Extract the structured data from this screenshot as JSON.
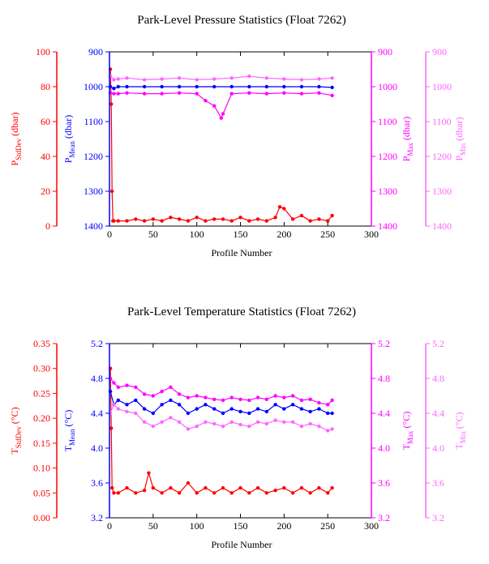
{
  "colors": {
    "red": "#ff0000",
    "blue": "#0000ff",
    "magenta": "#ff00ff",
    "pink": "#ff66ff",
    "axis": "#000000"
  },
  "chart_data": [
    {
      "type": "scatter",
      "title": "Park-Level Pressure Statistics (Float 7262)",
      "xlabel": "Profile Number",
      "xlim": [
        0,
        300
      ],
      "x_ticks": [
        "0",
        "50",
        "100",
        "150",
        "200",
        "250",
        "300"
      ],
      "axes": [
        {
          "id": "stddev",
          "label_main": "P",
          "label_sub": "StdDev",
          "label_unit": " (dbar)",
          "ylim": [
            0,
            100
          ],
          "reversed": false,
          "ticks": [
            "0",
            "20",
            "40",
            "60",
            "80",
            "100"
          ],
          "color": "#ff0000"
        },
        {
          "id": "mean",
          "label_main": "P",
          "label_sub": "Mean",
          "label_unit": " (dbar)",
          "ylim": [
            900,
            1400
          ],
          "reversed": true,
          "ticks": [
            "900",
            "1000",
            "1100",
            "1200",
            "1300",
            "1400"
          ],
          "color": "#0000ff"
        },
        {
          "id": "max",
          "label_main": "P",
          "label_sub": "Max",
          "label_unit": " (dbar)",
          "ylim": [
            900,
            1400
          ],
          "reversed": true,
          "ticks": [
            "900",
            "1000",
            "1100",
            "1200",
            "1300",
            "1400"
          ],
          "color": "#ff00ff"
        },
        {
          "id": "min",
          "label_main": "P",
          "label_sub": "Min",
          "label_unit": " (dbar)",
          "ylim": [
            900,
            1400
          ],
          "reversed": true,
          "ticks": [
            "900",
            "1000",
            "1100",
            "1200",
            "1300",
            "1400"
          ],
          "color": "#ff66ff"
        }
      ],
      "series": [
        {
          "axis": "stddev",
          "x": [
            1,
            2,
            3,
            4,
            5,
            10,
            20,
            30,
            40,
            50,
            60,
            70,
            80,
            90,
            100,
            110,
            120,
            130,
            140,
            150,
            160,
            170,
            180,
            190,
            195,
            200,
            210,
            220,
            230,
            240,
            250,
            255
          ],
          "y": [
            90,
            70,
            20,
            3,
            3,
            3,
            3,
            4,
            3,
            4,
            3,
            5,
            4,
            3,
            5,
            3,
            4,
            4,
            3,
            5,
            3,
            4,
            3,
            5,
            11,
            10,
            4,
            6,
            3,
            4,
            3,
            6
          ]
        },
        {
          "axis": "mean",
          "x": [
            1,
            5,
            10,
            20,
            40,
            60,
            80,
            100,
            120,
            140,
            160,
            180,
            200,
            220,
            240,
            255
          ],
          "y": [
            1000,
            1005,
            1000,
            1000,
            1000,
            1000,
            1000,
            1000,
            1000,
            1000,
            1000,
            1000,
            1000,
            1000,
            1000,
            1002
          ]
        },
        {
          "axis": "max",
          "x": [
            1,
            5,
            10,
            20,
            40,
            60,
            80,
            100,
            110,
            120,
            128,
            130,
            140,
            160,
            180,
            200,
            220,
            240,
            255
          ],
          "y": [
            1018,
            1020,
            1020,
            1018,
            1020,
            1020,
            1018,
            1020,
            1040,
            1055,
            1090,
            1078,
            1020,
            1018,
            1020,
            1018,
            1020,
            1018,
            1025
          ]
        },
        {
          "axis": "min",
          "x": [
            1,
            5,
            10,
            20,
            40,
            60,
            80,
            100,
            120,
            140,
            160,
            180,
            200,
            220,
            240,
            255
          ],
          "y": [
            970,
            980,
            978,
            975,
            980,
            978,
            975,
            980,
            978,
            975,
            970,
            975,
            978,
            980,
            978,
            975
          ]
        }
      ]
    },
    {
      "type": "scatter",
      "title": "Park-Level Temperature Statistics (Float 7262)",
      "xlabel": "Profile Number",
      "xlim": [
        0,
        300
      ],
      "x_ticks": [
        "0",
        "50",
        "100",
        "150",
        "200",
        "250",
        "300"
      ],
      "axes": [
        {
          "id": "stddev",
          "label_main": "T",
          "label_sub": "StdDev",
          "label_unit": " (°C)",
          "ylim": [
            0,
            0.35
          ],
          "reversed": false,
          "ticks": [
            "0.00",
            "0.05",
            "0.10",
            "0.15",
            "0.20",
            "0.25",
            "0.30",
            "0.35"
          ],
          "color": "#ff0000"
        },
        {
          "id": "mean",
          "label_main": "T",
          "label_sub": "Mean",
          "label_unit": " (°C)",
          "ylim": [
            3.2,
            5.2
          ],
          "reversed": false,
          "ticks": [
            "3.2",
            "3.6",
            "4.0",
            "4.4",
            "4.8",
            "5.2"
          ],
          "color": "#0000ff"
        },
        {
          "id": "max",
          "label_main": "T",
          "label_sub": "Max",
          "label_unit": " (°C)",
          "ylim": [
            3.2,
            5.2
          ],
          "reversed": false,
          "ticks": [
            "3.2",
            "3.6",
            "4.0",
            "4.4",
            "4.8",
            "5.2"
          ],
          "color": "#ff00ff"
        },
        {
          "id": "min",
          "label_main": "T",
          "label_sub": "Min",
          "label_unit": " (°C)",
          "ylim": [
            3.2,
            5.2
          ],
          "reversed": false,
          "ticks": [
            "3.2",
            "3.6",
            "4.0",
            "4.4",
            "4.8",
            "5.2"
          ],
          "color": "#ff66ff"
        }
      ],
      "series": [
        {
          "axis": "stddev",
          "x": [
            1,
            2,
            3,
            5,
            10,
            20,
            30,
            40,
            45,
            50,
            60,
            70,
            80,
            90,
            100,
            110,
            120,
            130,
            140,
            150,
            160,
            170,
            180,
            190,
            200,
            210,
            220,
            230,
            240,
            250,
            255
          ],
          "y": [
            0.3,
            0.18,
            0.06,
            0.05,
            0.05,
            0.06,
            0.05,
            0.055,
            0.09,
            0.06,
            0.05,
            0.06,
            0.05,
            0.07,
            0.05,
            0.06,
            0.05,
            0.06,
            0.05,
            0.06,
            0.05,
            0.06,
            0.05,
            0.055,
            0.06,
            0.05,
            0.06,
            0.05,
            0.06,
            0.05,
            0.06
          ]
        },
        {
          "axis": "mean",
          "x": [
            1,
            5,
            10,
            20,
            30,
            40,
            50,
            60,
            70,
            80,
            90,
            100,
            110,
            120,
            130,
            140,
            150,
            160,
            170,
            180,
            190,
            200,
            210,
            220,
            230,
            240,
            250,
            255
          ],
          "y": [
            4.65,
            4.5,
            4.55,
            4.5,
            4.55,
            4.45,
            4.4,
            4.5,
            4.55,
            4.5,
            4.4,
            4.45,
            4.5,
            4.45,
            4.4,
            4.45,
            4.42,
            4.4,
            4.45,
            4.42,
            4.5,
            4.45,
            4.5,
            4.45,
            4.42,
            4.45,
            4.4,
            4.4
          ]
        },
        {
          "axis": "max",
          "x": [
            1,
            5,
            10,
            20,
            30,
            40,
            50,
            60,
            70,
            80,
            90,
            100,
            110,
            120,
            130,
            140,
            150,
            160,
            170,
            180,
            190,
            200,
            210,
            220,
            230,
            240,
            250,
            255
          ],
          "y": [
            4.8,
            4.75,
            4.7,
            4.72,
            4.7,
            4.62,
            4.6,
            4.65,
            4.7,
            4.62,
            4.58,
            4.6,
            4.58,
            4.56,
            4.55,
            4.58,
            4.56,
            4.55,
            4.58,
            4.56,
            4.6,
            4.58,
            4.6,
            4.55,
            4.56,
            4.52,
            4.5,
            4.55
          ]
        },
        {
          "axis": "min",
          "x": [
            1,
            5,
            10,
            20,
            30,
            40,
            50,
            60,
            70,
            80,
            90,
            100,
            110,
            120,
            130,
            140,
            150,
            160,
            170,
            180,
            190,
            200,
            210,
            220,
            230,
            240,
            250,
            255
          ],
          "y": [
            4.4,
            4.5,
            4.45,
            4.42,
            4.4,
            4.3,
            4.25,
            4.3,
            4.35,
            4.3,
            4.22,
            4.25,
            4.3,
            4.28,
            4.25,
            4.3,
            4.27,
            4.25,
            4.3,
            4.28,
            4.32,
            4.3,
            4.3,
            4.25,
            4.28,
            4.25,
            4.2,
            4.22
          ]
        }
      ]
    }
  ]
}
